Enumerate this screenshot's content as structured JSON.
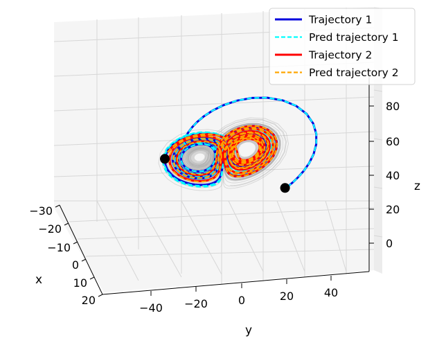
{
  "chart_data": {
    "type": "line",
    "projection": "3d",
    "title": "",
    "axes": {
      "x": {
        "label": "x",
        "ticks": [
          "−30",
          "−20",
          "−10",
          "0",
          "10",
          "20"
        ],
        "range": [
          -30,
          20
        ]
      },
      "y": {
        "label": "y",
        "ticks": [
          "−40",
          "−20",
          "0",
          "20",
          "40"
        ],
        "range": [
          -50,
          50
        ]
      },
      "z": {
        "label": "z",
        "ticks": [
          "0",
          "20",
          "40",
          "60",
          "80"
        ],
        "range": [
          -10,
          90
        ]
      }
    },
    "grid": true,
    "legend_position": "top-right",
    "background_trajectories": "many light gray Lorenz-attractor trajectories",
    "series": [
      {
        "name": "Trajectory 1",
        "color": "#0000dd",
        "style": "solid",
        "start_marker": true
      },
      {
        "name": "Pred trajectory 1",
        "color": "#00ffff",
        "style": "dashed"
      },
      {
        "name": "Trajectory 2",
        "color": "#ff0000",
        "style": "solid",
        "start_marker": true
      },
      {
        "name": "Pred trajectory 2",
        "color": "#ffa500",
        "style": "dashed"
      }
    ],
    "attractor_type": "Lorenz",
    "wing_centers_xyz": [
      [
        -8.5,
        -8.5,
        27
      ],
      [
        8.5,
        8.5,
        27
      ]
    ]
  }
}
